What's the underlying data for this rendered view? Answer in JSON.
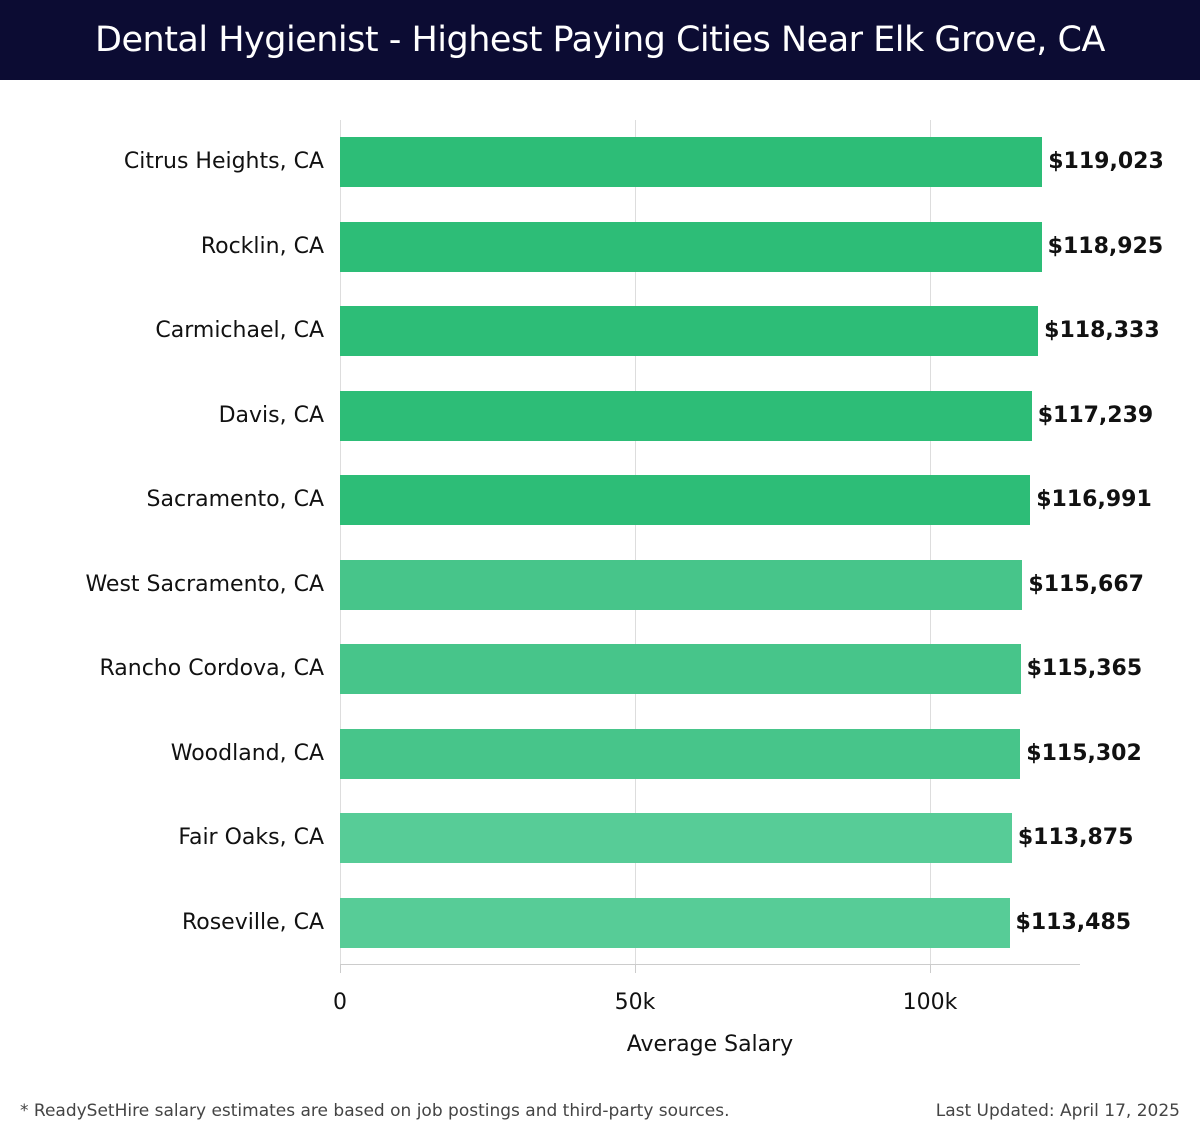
{
  "header": {
    "title": "Dental Hygienist - Highest Paying Cities Near Elk Grove, CA"
  },
  "footer": {
    "note": "* ReadySetHire salary estimates are based on job postings and third-party sources.",
    "updated": "Last Updated: April 17, 2025"
  },
  "colors": {
    "header_bg": "#0c0c33",
    "tier1": "#2dbd77",
    "tier2": "#47c58a",
    "tier3": "#57cc97",
    "grid": "#dddddd"
  },
  "chart_data": {
    "type": "bar",
    "orientation": "horizontal",
    "title": "Dental Hygienist - Highest Paying Cities Near Elk Grove, CA",
    "xlabel": "Average Salary",
    "ylabel": "",
    "xlim": [
      0,
      125000
    ],
    "xticks": [
      0,
      50000,
      100000
    ],
    "xtick_labels": [
      "0",
      "50k",
      "100k"
    ],
    "grid": true,
    "categories": [
      "Citrus Heights, CA",
      "Rocklin, CA",
      "Carmichael, CA",
      "Davis, CA",
      "Sacramento, CA",
      "West Sacramento, CA",
      "Rancho Cordova, CA",
      "Woodland, CA",
      "Fair Oaks, CA",
      "Roseville, CA"
    ],
    "values": [
      119023,
      118925,
      118333,
      117239,
      116991,
      115667,
      115365,
      115302,
      113875,
      113485
    ],
    "value_labels": [
      "$119,023",
      "$118,925",
      "$118,333",
      "$117,239",
      "$116,991",
      "$115,667",
      "$115,365",
      "$115,302",
      "$113,875",
      "$113,485"
    ],
    "bar_colors": [
      "#2dbd77",
      "#2dbd77",
      "#2dbd77",
      "#2dbd77",
      "#2dbd77",
      "#47c58a",
      "#47c58a",
      "#47c58a",
      "#57cc97",
      "#57cc97"
    ]
  }
}
